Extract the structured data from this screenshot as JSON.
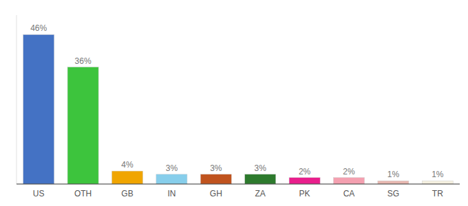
{
  "chart_data": {
    "type": "bar",
    "categories": [
      "US",
      "OTH",
      "GB",
      "IN",
      "GH",
      "ZA",
      "PK",
      "CA",
      "SG",
      "TR"
    ],
    "values": [
      46,
      36,
      4,
      3,
      3,
      3,
      2,
      2,
      1,
      1
    ],
    "value_labels": [
      "46%",
      "36%",
      "4%",
      "3%",
      "3%",
      "3%",
      "2%",
      "2%",
      "1%",
      "1%"
    ],
    "colors": [
      "#4472c4",
      "#3dc43d",
      "#f0a500",
      "#87ceeb",
      "#c0531e",
      "#2d7a2d",
      "#e91e8c",
      "#f4a0b0",
      "#e8b8b0",
      "#f5f0e0"
    ],
    "ylim": [
      0,
      52
    ],
    "data_labels": true,
    "tick_labels": "x"
  }
}
